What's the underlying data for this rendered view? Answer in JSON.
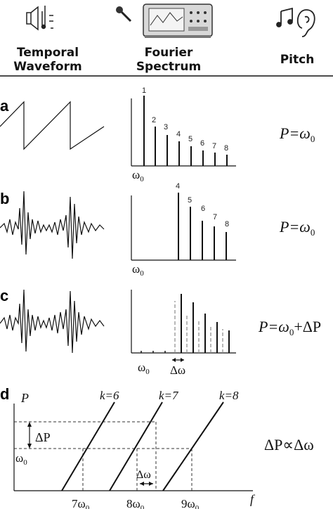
{
  "header": {
    "temporal": [
      "Temporal",
      "Waveform"
    ],
    "fourier": [
      "Fourier",
      "Spectrum"
    ],
    "pitch": "Pitch"
  },
  "panels": {
    "a": {
      "letter": "a",
      "equation": "P=ω",
      "eq_sub": "0",
      "axis_label": "ω",
      "axis_sub": "0",
      "harmonics": [
        "1",
        "2",
        "3",
        "4",
        "5",
        "6",
        "7",
        "8"
      ]
    },
    "b": {
      "letter": "b",
      "equation": "P=ω",
      "eq_sub": "0",
      "axis_label": "ω",
      "axis_sub": "0",
      "harmonics": [
        "4",
        "5",
        "6",
        "7",
        "8"
      ]
    },
    "c": {
      "letter": "c",
      "equation": "P=ω",
      "eq_sub": "0",
      "eq_tail": "+ΔP",
      "axis_label": "ω",
      "axis_sub": "0",
      "delta_label": "Δω"
    },
    "d": {
      "letter": "d",
      "ylabel": "P",
      "xlabel": "f",
      "k_labels": [
        "k=6",
        "k=7",
        "k=8"
      ],
      "delta_p": "ΔP",
      "omega": "ω",
      "omega_sub": "0",
      "delta_w": "Δω",
      "ticks": [
        {
          "coef": "7ω",
          "sub": "0"
        },
        {
          "coef": "8ω",
          "sub": "0"
        },
        {
          "coef": "9ω",
          "sub": "0"
        }
      ],
      "equation": "ΔP∝Δω"
    }
  }
}
